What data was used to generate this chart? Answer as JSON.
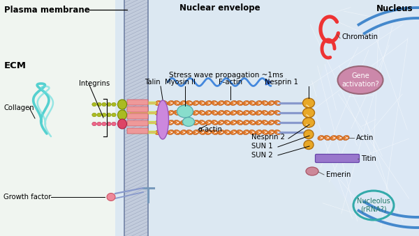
{
  "bg_outer": "#f0f5f0",
  "cell_interior": "#dce8f2",
  "nucleus_interior": "#e2ecf8",
  "plasma_mem_fill": "#c4cede",
  "nuclear_env_color": "#4488cc",
  "actin_color": "#e07828",
  "actin_edge": "#b05010",
  "nesprin_color": "#e8a828",
  "nesprin_edge": "#b07010",
  "talin_color": "#cc88dd",
  "talin_edge": "#9955bb",
  "myosin_color": "#88ddcc",
  "myosin_edge": "#55aaaa",
  "integrin_alpha_color": "#aabb22",
  "integrin_alpha_edge": "#778800",
  "integrin_beta_color": "#dd4466",
  "integrin_beta_edge": "#aa2244",
  "integrin_head_color": "#ee9999",
  "integrin_head_edge": "#cc5566",
  "linker_color": "#ccdd44",
  "linker_pink": "#ee9999",
  "collagen_color": "#44cccc",
  "growth_factor_color": "#ee8899",
  "growth_factor_edge": "#cc5566",
  "titin_color": "#9977cc",
  "titin_edge": "#6644aa",
  "emerin_color": "#cc8899",
  "emerin_edge": "#aa5566",
  "chromatin_color": "#ee3333",
  "gene_fill": "#cc88aa",
  "gene_edge": "#996677",
  "nucleolus_edge": "#33aaaa",
  "dna_color1": "#7799bb",
  "dna_color2": "#9bbbd9",
  "white_net": "#ffffff",
  "stress_color": "#4488dd",
  "stress_arrow": "#3366cc",
  "label_color": "#111111",
  "header_bold": "#000000",
  "labels": {
    "plasma_membrane": "Plasma membrane",
    "ecm": "ECM",
    "nuclear_envelope": "Nuclear envelope",
    "nucleus": "Nucleus",
    "collagen": "Collagen",
    "integrins": "Integrins",
    "talin": "Talin",
    "myosin": "Myosin II",
    "f_actin": "F-actin",
    "alpha_actin": "α-actin",
    "nesprin1": "Nesprin 1",
    "nesprin2": "Nesprin 2",
    "sun1": "SUN 1",
    "sun2": "SUN 2",
    "actin_nuc": "Actin",
    "titin": "Titin",
    "emerin": "Emerin",
    "chromatin": "Chromatin",
    "gene": "Gene\nactivation?",
    "nucleolus": "Nucleolus\n(rRNA?)",
    "growth_factor": "Growth factor",
    "stress_wave": "Stress wave propagation ~1ms"
  }
}
